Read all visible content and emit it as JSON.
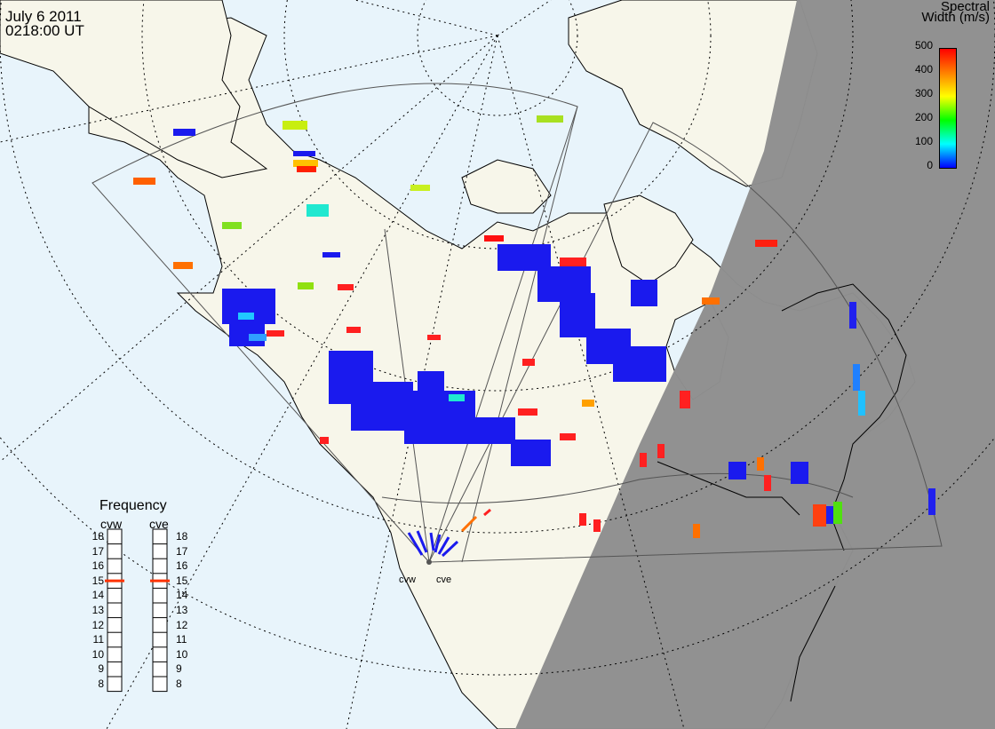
{
  "header": {
    "date": "July  6 2011",
    "time": "0218:00 UT"
  },
  "colorbar": {
    "title_line1": "Spectral",
    "title_line2": "Width (m/s)",
    "ticks": [
      "500",
      "400",
      "300",
      "200",
      "100",
      "0"
    ],
    "gradient": [
      "#ff0000",
      "#ff7f00",
      "#ffff00",
      "#00ff00",
      "#00ffff",
      "#0000ff"
    ]
  },
  "frequency": {
    "title": "Frequency",
    "radars": [
      {
        "name": "cvw",
        "selected": "15"
      },
      {
        "name": "cve",
        "selected": "15"
      }
    ],
    "levels": [
      "18",
      "17",
      "16",
      "15",
      "14",
      "13",
      "12",
      "11",
      "10",
      "9",
      "8"
    ]
  },
  "sites": [
    "cvw",
    "cve"
  ],
  "colors": {
    "ocean": "#e8f4fb",
    "land_day": "#f7f6ea",
    "night": "#8f8f8f",
    "low_width": "#1a1aee",
    "freq_marker": "#ff3300"
  }
}
